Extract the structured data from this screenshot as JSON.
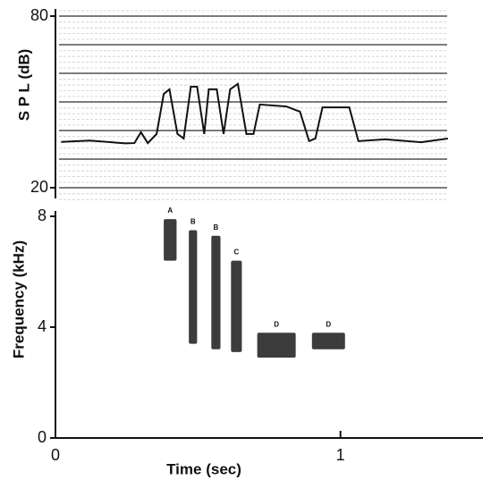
{
  "chart_data": [
    {
      "type": "line",
      "ylabel": "S P L (dB)",
      "x": [
        0.02,
        0.12,
        0.245,
        0.277,
        0.3,
        0.324,
        0.355,
        0.38,
        0.4,
        0.428,
        0.45,
        0.475,
        0.497,
        0.522,
        0.538,
        0.566,
        0.59,
        0.613,
        0.64,
        0.67,
        0.695,
        0.717,
        0.81,
        0.858,
        0.89,
        0.912,
        0.937,
        1.031,
        1.063,
        1.157,
        1.283,
        1.377
      ],
      "values": [
        36,
        36.5,
        35.5,
        35.6,
        39.4,
        35.6,
        38.8,
        52.8,
        54.4,
        38.8,
        37.2,
        55.3,
        55.3,
        38.8,
        54.4,
        54.4,
        38.8,
        54.4,
        56.3,
        38.8,
        38.8,
        49.1,
        48.4,
        46.6,
        36.3,
        37.2,
        48.1,
        48.1,
        36.3,
        36.9,
        35.9,
        37.2
      ],
      "color": "#111111",
      "xlim": [
        0,
        1.5
      ],
      "ylim": [
        20,
        80
      ],
      "yticks": [
        20,
        80
      ],
      "ygrid": [
        30,
        40,
        50,
        60,
        70
      ]
    },
    {
      "type": "spectrogram",
      "xlabel": "Time (sec)",
      "ylabel": "Frequency (kHz)",
      "syllables": [
        {
          "label": "A",
          "start": 0.38,
          "end": 0.425,
          "low": 6.4,
          "high": 7.9
        },
        {
          "label": "B",
          "start": 0.468,
          "end": 0.497,
          "low": 3.4,
          "high": 7.5
        },
        {
          "label": "B",
          "start": 0.547,
          "end": 0.579,
          "low": 3.2,
          "high": 7.3
        },
        {
          "label": "C",
          "start": 0.616,
          "end": 0.654,
          "low": 3.1,
          "high": 6.4
        },
        {
          "label": "D",
          "start": 0.708,
          "end": 0.843,
          "low": 2.9,
          "high": 3.8
        },
        {
          "label": "D",
          "start": 0.9,
          "end": 1.016,
          "low": 3.2,
          "high": 3.8
        }
      ],
      "color": "#1a1a1a",
      "xlim": [
        0,
        1.5
      ],
      "ylim": [
        0,
        8
      ],
      "xticks": [
        0,
        1
      ],
      "yticks": [
        0,
        4,
        8
      ]
    }
  ]
}
